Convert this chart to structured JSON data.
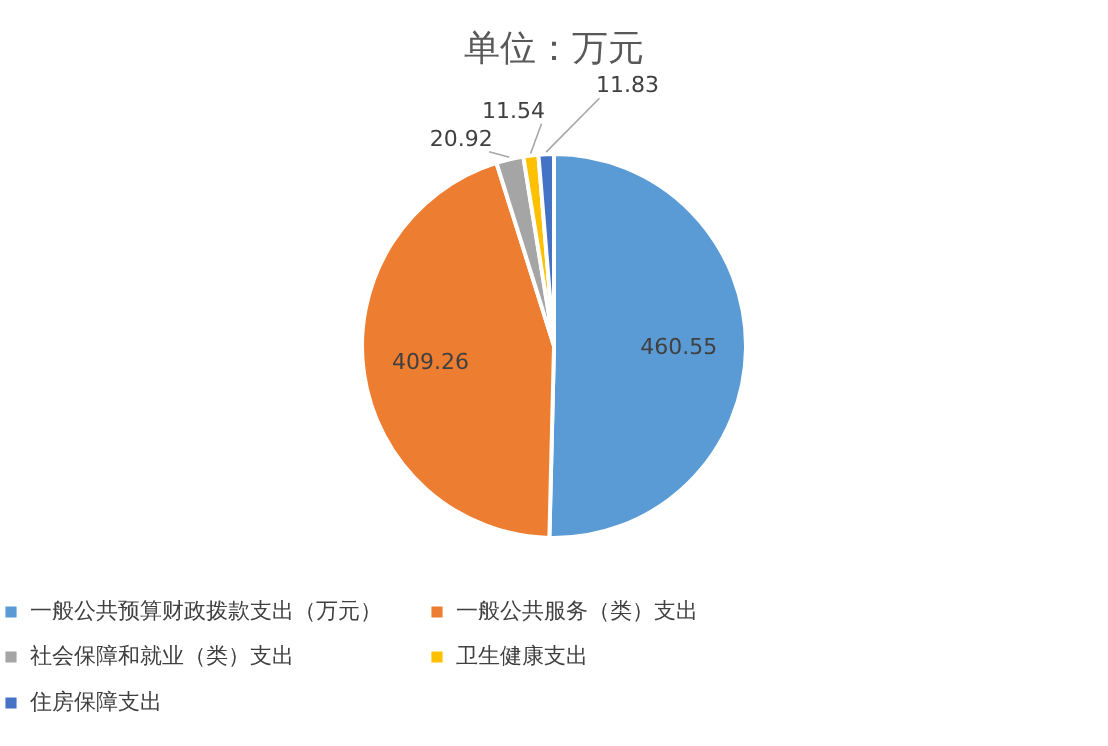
{
  "chart_data": {
    "type": "pie",
    "title": "单位：万元",
    "categories": [
      "一般公共预算财政拨款支出（万元）",
      "一般公共服务（类）支出",
      "社会保障和就业（类）支出",
      "卫生健康支出",
      "住房保障支出"
    ],
    "values": [
      460.55,
      409.26,
      20.92,
      11.54,
      11.83
    ],
    "colors": [
      "#5b9bd5",
      "#ed7d31",
      "#a5a5a5",
      "#ffc000",
      "#4472c4"
    ],
    "data_labels": true,
    "legend": "bottom"
  }
}
